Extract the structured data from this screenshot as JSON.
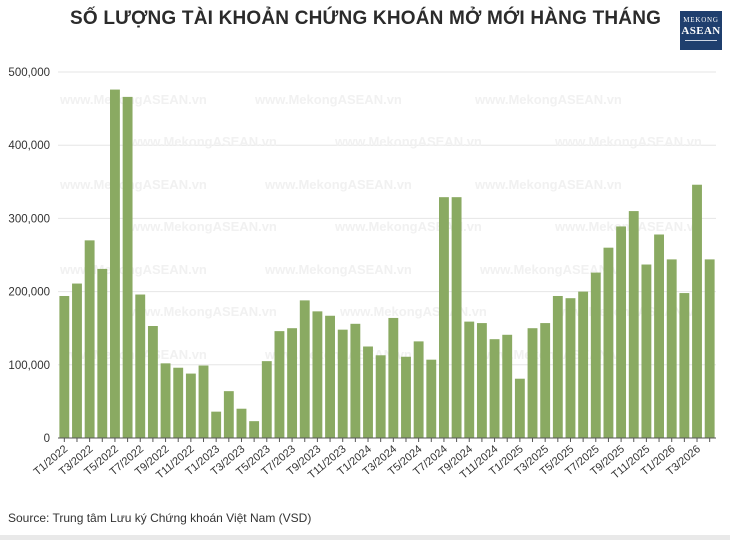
{
  "title": "SỐ LƯỢNG TÀI KHOẢN CHỨNG KHOÁN MỞ MỚI HÀNG THÁNG",
  "logo": {
    "line1": "MEKONG",
    "line2": "ASEAN"
  },
  "watermark": "www.MekongASEAN.vn",
  "source": "Source: Trung tâm Lưu ký Chứng khoán Việt Nam (VSD)",
  "colors": {
    "bar": "#8aaa62",
    "grid": "#e6e6e6",
    "axis": "#555555",
    "text": "#333333"
  },
  "chart_data": {
    "type": "bar",
    "title": "SỐ LƯỢNG TÀI KHOẢN CHỨNG KHOÁN MỞ MỚI HÀNG THÁNG",
    "xlabel": "",
    "ylabel": "",
    "ylim": [
      0,
      500000
    ],
    "yticks": [
      0,
      100000,
      200000,
      300000,
      400000,
      500000
    ],
    "ytick_labels": [
      "0",
      "100,000",
      "200,000",
      "300,000",
      "400,000",
      "500,000"
    ],
    "grid": true,
    "categories": [
      "T1/2022",
      "T2/2022",
      "T3/2022",
      "T4/2022",
      "T5/2022",
      "T6/2022",
      "T7/2022",
      "T8/2022",
      "T9/2022",
      "T10/2022",
      "T11/2022",
      "T12/2022",
      "T1/2023",
      "T2/2023",
      "T3/2023",
      "T4/2023",
      "T5/2023",
      "T6/2023",
      "T7/2023",
      "T8/2023",
      "T9/2023",
      "T10/2023",
      "T11/2023",
      "T12/2023",
      "T1/2024",
      "T2/2024",
      "T3/2024",
      "T4/2024",
      "T5/2024",
      "T6/2024",
      "T7/2024",
      "T8/2024",
      "T9/2024",
      "T10/2024",
      "T11/2024",
      "T12/2024",
      "T1/2025",
      "T2/2025",
      "T3/2025",
      "T4/2025",
      "T5/2025",
      "T6/2025",
      "T7/2025",
      "T8/2025",
      "T9/2025",
      "T10/2025",
      "T11/2025",
      "T12/2025",
      "T1/2026",
      "T2/2026",
      "T3/2026",
      "T4/2026"
    ],
    "values": [
      194000,
      211000,
      270000,
      231000,
      476000,
      466000,
      196000,
      153000,
      102000,
      96000,
      88000,
      99000,
      36000,
      64000,
      40000,
      23000,
      105000,
      146000,
      150000,
      188000,
      173000,
      167000,
      148000,
      156000,
      125000,
      113000,
      164000,
      111000,
      132000,
      107000,
      329000,
      329000,
      159000,
      157000,
      135000,
      141000,
      81000,
      150000,
      157000,
      194000,
      191000,
      200000,
      226000,
      260000,
      289000,
      310000,
      237000,
      278000,
      244000,
      198000,
      346000,
      244000
    ],
    "tick_labels_shown": [
      "T1/2022",
      "T3/2022",
      "T5/2022",
      "T7/2022",
      "T9/2022",
      "T11/2022",
      "T1/2023",
      "T3/2023",
      "T5/2023",
      "T7/2023",
      "T9/2023",
      "T11/2023",
      "T1/2024",
      "T3/2024",
      "T5/2024",
      "T7/2024",
      "T9/2024",
      "T11/2024",
      "T1/2025",
      "T3/2025",
      "T5/2025",
      "T7/2025",
      "T9/2025",
      "T11/2025",
      "T1/2026",
      "T3/2026"
    ]
  }
}
